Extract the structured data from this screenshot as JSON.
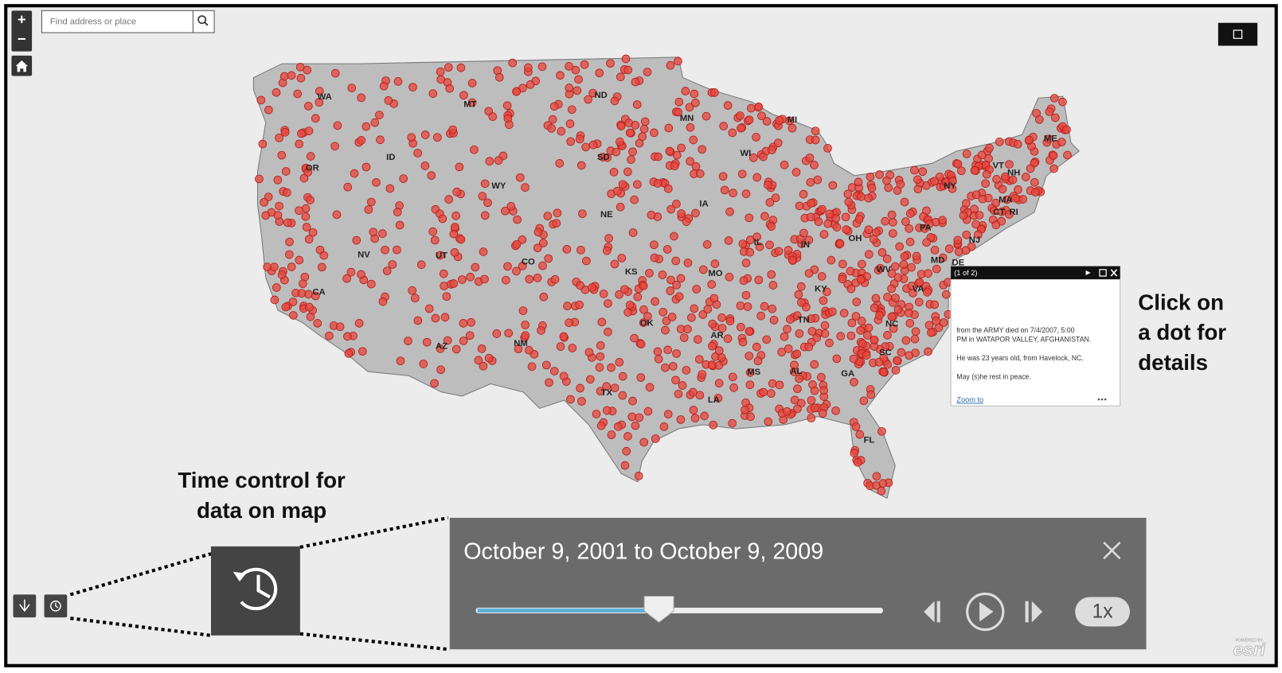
{
  "search": {
    "placeholder": "Find address or place"
  },
  "zoom": {
    "in": "+",
    "out": "−"
  },
  "states": [
    "WA",
    "OR",
    "CA",
    "NV",
    "ID",
    "MT",
    "WY",
    "UT",
    "CO",
    "AZ",
    "NM",
    "ND",
    "SD",
    "NE",
    "KS",
    "OK",
    "TX",
    "MN",
    "IA",
    "MO",
    "AR",
    "LA",
    "WI",
    "IL",
    "MS",
    "MI",
    "IN",
    "KY",
    "TN",
    "AL",
    "GA",
    "FL",
    "OH",
    "WV",
    "VA",
    "NC",
    "SC",
    "PA",
    "NY",
    "MD",
    "DE",
    "NJ",
    "CT",
    "RI",
    "MA",
    "VT",
    "NH",
    "ME"
  ],
  "popup": {
    "header": "(1 of 2)",
    "lines": [
      "from the ARMY died on 7/4/2007, 5:00",
      "PM in WATAPOR VALLEY, AFGHANISTAN.",
      "He was 23 years old, from Havelock, NC.",
      "May (s)he rest in peace."
    ],
    "link": "Zoom to"
  },
  "annotations": {
    "popup_hint": [
      "Click on",
      "a dot for",
      "details"
    ],
    "time_hint": [
      "Time control for",
      "data on map"
    ]
  },
  "time_slider": {
    "range": "October 9, 2001 to October 9, 2009",
    "speed": "1x"
  },
  "attribution": {
    "powered": "POWERED BY",
    "brand": "esri"
  }
}
